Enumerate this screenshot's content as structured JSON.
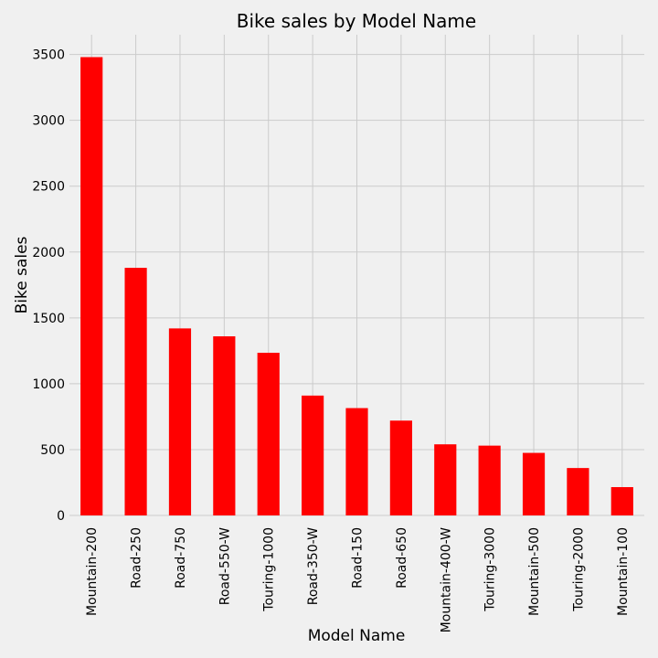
{
  "chart_data": {
    "type": "bar",
    "title": "Bike sales by Model Name",
    "xlabel": "Model Name",
    "ylabel": "Bike sales",
    "categories": [
      "Mountain-200",
      "Road-250",
      "Road-750",
      "Road-550-W",
      "Touring-1000",
      "Road-350-W",
      "Road-150",
      "Road-650",
      "Mountain-400-W",
      "Touring-3000",
      "Mountain-500",
      "Touring-2000",
      "Mountain-100"
    ],
    "values": [
      3480,
      1880,
      1420,
      1360,
      1235,
      910,
      815,
      720,
      540,
      530,
      475,
      360,
      215
    ],
    "ylim": [
      0,
      3650
    ],
    "yticks": [
      0,
      500,
      1000,
      1500,
      2000,
      2500,
      3000,
      3500
    ],
    "bar_color": "#ff0000",
    "background_color": "#f0f0f0",
    "grid": true,
    "legend": false
  }
}
